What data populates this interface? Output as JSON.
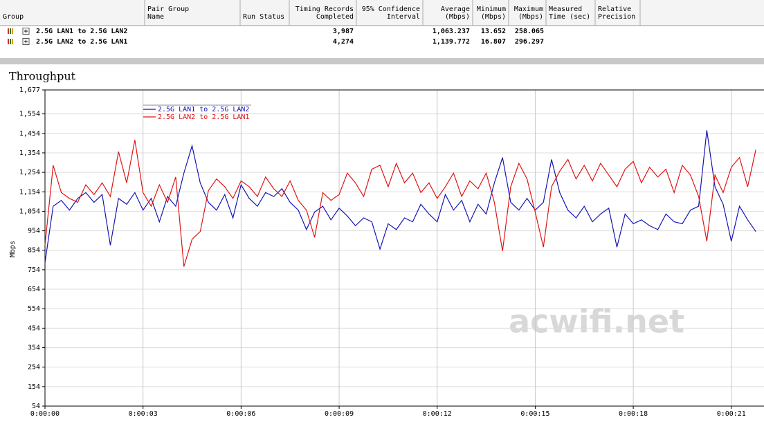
{
  "table": {
    "header": [
      [
        "Group"
      ],
      [
        "Pair Group",
        "Name"
      ],
      [
        "Run Status"
      ],
      [
        "Timing Records",
        "Completed"
      ],
      [
        "95% Confidence",
        "Interval"
      ],
      [
        "Average",
        "(Mbps)"
      ],
      [
        "Minimum",
        "(Mbps)"
      ],
      [
        "Maximum",
        "(Mbps)"
      ],
      [
        "Measured",
        "Time (sec)"
      ],
      [
        "Relative",
        "Precision"
      ]
    ],
    "rows": [
      {
        "group": "2.5G LAN1 to 2.5G LAN2",
        "records": "3,987",
        "average": "1,063.237",
        "minimum": "13.652",
        "maximum": "258.065"
      },
      {
        "group": "2.5G LAN2 to 2.5G LAN1",
        "records": "4,274",
        "average": "1,139.772",
        "minimum": "16.807",
        "maximum": "296.297"
      }
    ]
  },
  "chart_data": {
    "type": "line",
    "title": "Throughput",
    "y_label": "Mbps",
    "watermark": "acwifi.net",
    "grid": true,
    "legend": "upper left",
    "xlim": [
      0,
      22
    ],
    "ylim": [
      54,
      1677
    ],
    "xticks": [
      {
        "value": 0,
        "label": "0:00:00"
      },
      {
        "value": 3,
        "label": "0:00:03"
      },
      {
        "value": 6,
        "label": "0:00:06"
      },
      {
        "value": 9,
        "label": "0:00:09"
      },
      {
        "value": 12,
        "label": "0:00:12"
      },
      {
        "value": 15,
        "label": "0:00:15"
      },
      {
        "value": 18,
        "label": "0:00:18"
      },
      {
        "value": 21,
        "label": "0:00:21"
      }
    ],
    "yticks": [
      54,
      154,
      254,
      354,
      454,
      554,
      654,
      754,
      854,
      954,
      {
        "value": 1054,
        "label": "1,054"
      },
      {
        "value": 1154,
        "label": "1,154"
      },
      {
        "value": 1254,
        "label": "1,254"
      },
      {
        "value": 1354,
        "label": "1,354"
      },
      {
        "value": 1454,
        "label": "1,454"
      },
      {
        "value": 1554,
        "label": "1,554"
      },
      {
        "value": 1677,
        "label": "1,677"
      }
    ],
    "x": [
      0,
      0.25,
      0.5,
      0.75,
      1,
      1.25,
      1.5,
      1.75,
      2,
      2.25,
      2.5,
      2.75,
      3,
      3.25,
      3.5,
      3.75,
      4,
      4.25,
      4.5,
      4.75,
      5,
      5.25,
      5.5,
      5.75,
      6,
      6.25,
      6.5,
      6.75,
      7,
      7.25,
      7.5,
      7.75,
      8,
      8.25,
      8.5,
      8.75,
      9,
      9.25,
      9.5,
      9.75,
      10,
      10.25,
      10.5,
      10.75,
      11,
      11.25,
      11.5,
      11.75,
      12,
      12.25,
      12.5,
      12.75,
      13,
      13.25,
      13.5,
      13.75,
      14,
      14.25,
      14.5,
      14.75,
      15,
      15.25,
      15.5,
      15.75,
      16,
      16.25,
      16.5,
      16.75,
      17,
      17.25,
      17.5,
      17.75,
      18,
      18.25,
      18.5,
      18.75,
      19,
      19.25,
      19.5,
      19.75,
      20,
      20.25,
      20.5,
      20.75,
      21,
      21.25,
      21.5,
      21.75
    ],
    "series": [
      {
        "name": "2.5G LAN1 to 2.5G LAN2",
        "color": "#1414b4",
        "values": [
          790,
          1080,
          1110,
          1060,
          1120,
          1150,
          1100,
          1140,
          880,
          1120,
          1090,
          1150,
          1060,
          1120,
          1000,
          1130,
          1080,
          1250,
          1390,
          1200,
          1100,
          1060,
          1140,
          1020,
          1190,
          1120,
          1080,
          1150,
          1130,
          1170,
          1100,
          1060,
          960,
          1050,
          1080,
          1010,
          1070,
          1030,
          980,
          1020,
          1000,
          860,
          990,
          960,
          1020,
          1000,
          1090,
          1040,
          1000,
          1140,
          1060,
          1110,
          1000,
          1090,
          1040,
          1200,
          1330,
          1100,
          1060,
          1120,
          1060,
          1100,
          1320,
          1150,
          1060,
          1020,
          1080,
          1000,
          1040,
          1070,
          870,
          1040,
          990,
          1010,
          980,
          960,
          1040,
          1000,
          990,
          1060,
          1080,
          1470,
          1180,
          1090,
          900,
          1080,
          1010,
          950
        ]
      },
      {
        "name": "2.5G LAN2 to 2.5G LAN1",
        "color": "#e01414",
        "values": [
          880,
          1290,
          1150,
          1120,
          1100,
          1190,
          1140,
          1200,
          1130,
          1360,
          1200,
          1420,
          1150,
          1080,
          1190,
          1100,
          1230,
          770,
          910,
          950,
          1160,
          1220,
          1180,
          1120,
          1210,
          1180,
          1130,
          1230,
          1170,
          1130,
          1210,
          1110,
          1060,
          920,
          1150,
          1110,
          1140,
          1250,
          1200,
          1130,
          1270,
          1290,
          1180,
          1300,
          1200,
          1250,
          1150,
          1200,
          1120,
          1180,
          1250,
          1130,
          1210,
          1170,
          1250,
          1100,
          850,
          1180,
          1300,
          1220,
          1050,
          870,
          1180,
          1260,
          1320,
          1220,
          1290,
          1210,
          1300,
          1240,
          1180,
          1270,
          1310,
          1200,
          1280,
          1230,
          1270,
          1150,
          1290,
          1240,
          1130,
          900,
          1240,
          1150,
          1280,
          1330,
          1180,
          1370
        ]
      }
    ]
  }
}
